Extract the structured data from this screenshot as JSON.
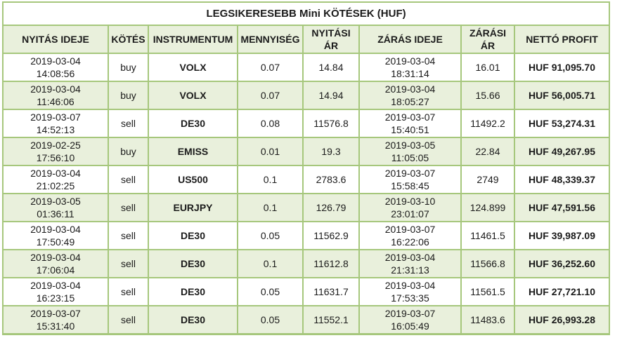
{
  "chart_data": {
    "type": "table",
    "title": "LEGSIKERESEBB Mini KÖTÉSEK (HUF)",
    "columns": [
      "NYITÁS IDEJE",
      "KÖTÉS",
      "INSTRUMENTUM",
      "MENNYISÉG",
      "NYITÁSI ÁR",
      "ZÁRÁS IDEJE",
      "ZÁRÁSI ÁR",
      "NETTÓ PROFIT"
    ],
    "rows": [
      {
        "open_date": "2019-03-04",
        "open_clock": "14:08:56",
        "side": "buy",
        "instrument": "VOLX",
        "qty": "0.07",
        "open_price": "14.84",
        "close_date": "2019-03-04",
        "close_clock": "18:31:14",
        "close_price": "16.01",
        "profit": "HUF 91,095.70"
      },
      {
        "open_date": "2019-03-04",
        "open_clock": "11:46:06",
        "side": "buy",
        "instrument": "VOLX",
        "qty": "0.07",
        "open_price": "14.94",
        "close_date": "2019-03-04",
        "close_clock": "18:05:27",
        "close_price": "15.66",
        "profit": "HUF 56,005.71"
      },
      {
        "open_date": "2019-03-07",
        "open_clock": "14:52:13",
        "side": "sell",
        "instrument": "DE30",
        "qty": "0.08",
        "open_price": "11576.8",
        "close_date": "2019-03-07",
        "close_clock": "15:40:51",
        "close_price": "11492.2",
        "profit": "HUF 53,274.31"
      },
      {
        "open_date": "2019-02-25",
        "open_clock": "17:56:10",
        "side": "buy",
        "instrument": "EMISS",
        "qty": "0.01",
        "open_price": "19.3",
        "close_date": "2019-03-05",
        "close_clock": "11:05:05",
        "close_price": "22.84",
        "profit": "HUF 49,267.95"
      },
      {
        "open_date": "2019-03-04",
        "open_clock": "21:02:25",
        "side": "sell",
        "instrument": "US500",
        "qty": "0.1",
        "open_price": "2783.6",
        "close_date": "2019-03-07",
        "close_clock": "15:58:45",
        "close_price": "2749",
        "profit": "HUF 48,339.37"
      },
      {
        "open_date": "2019-03-05",
        "open_clock": "01:36:11",
        "side": "sell",
        "instrument": "EURJPY",
        "qty": "0.1",
        "open_price": "126.79",
        "close_date": "2019-03-10",
        "close_clock": "23:01:07",
        "close_price": "124.899",
        "profit": "HUF 47,591.56"
      },
      {
        "open_date": "2019-03-04",
        "open_clock": "17:50:49",
        "side": "sell",
        "instrument": "DE30",
        "qty": "0.05",
        "open_price": "11562.9",
        "close_date": "2019-03-07",
        "close_clock": "16:22:06",
        "close_price": "11461.5",
        "profit": "HUF 39,987.09"
      },
      {
        "open_date": "2019-03-04",
        "open_clock": "17:06:04",
        "side": "sell",
        "instrument": "DE30",
        "qty": "0.1",
        "open_price": "11612.8",
        "close_date": "2019-03-04",
        "close_clock": "21:31:13",
        "close_price": "11566.8",
        "profit": "HUF 36,252.60"
      },
      {
        "open_date": "2019-03-04",
        "open_clock": "16:23:15",
        "side": "sell",
        "instrument": "DE30",
        "qty": "0.05",
        "open_price": "11631.7",
        "close_date": "2019-03-04",
        "close_clock": "17:53:35",
        "close_price": "11561.5",
        "profit": "HUF 27,721.10"
      },
      {
        "open_date": "2019-03-07",
        "open_clock": "15:31:40",
        "side": "sell",
        "instrument": "DE30",
        "qty": "0.05",
        "open_price": "11552.1",
        "close_date": "2019-03-07",
        "close_clock": "16:05:49",
        "close_price": "11483.6",
        "profit": "HUF 26,993.28"
      }
    ],
    "currency": "HUF"
  },
  "colors": {
    "border_green": "#a6c77c",
    "row_alt_green": "#e9f0dc",
    "text": "#1b1b1b",
    "background": "#ffffff"
  }
}
